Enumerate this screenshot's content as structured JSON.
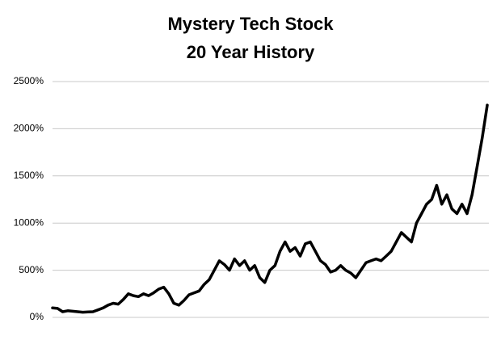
{
  "chart_data": {
    "type": "line",
    "title": "Mystery Tech Stock",
    "subtitle": "20 Year History",
    "color": "#000000",
    "grid": true,
    "ylim": [
      0,
      2500
    ],
    "yticks": [
      {
        "value": 0,
        "label": "0%"
      },
      {
        "value": 500,
        "label": "500%"
      },
      {
        "value": 1000,
        "label": "1000%"
      },
      {
        "value": 1500,
        "label": "1500%"
      },
      {
        "value": 2000,
        "label": "2000%"
      },
      {
        "value": 2500,
        "label": "2500%"
      }
    ],
    "values": [
      100,
      95,
      60,
      70,
      65,
      60,
      55,
      58,
      60,
      80,
      100,
      130,
      150,
      140,
      190,
      250,
      230,
      220,
      250,
      230,
      260,
      300,
      320,
      250,
      150,
      130,
      180,
      240,
      260,
      280,
      350,
      400,
      500,
      600,
      560,
      500,
      620,
      550,
      600,
      500,
      550,
      420,
      370,
      500,
      550,
      700,
      800,
      700,
      740,
      650,
      780,
      800,
      700,
      600,
      560,
      480,
      500,
      550,
      500,
      470,
      420,
      500,
      580,
      600,
      620,
      600,
      650,
      700,
      800,
      900,
      850,
      800,
      1000,
      1100,
      1200,
      1250,
      1400,
      1200,
      1300,
      1150,
      1100,
      1200,
      1100,
      1300,
      1600,
      1900,
      2250
    ]
  }
}
